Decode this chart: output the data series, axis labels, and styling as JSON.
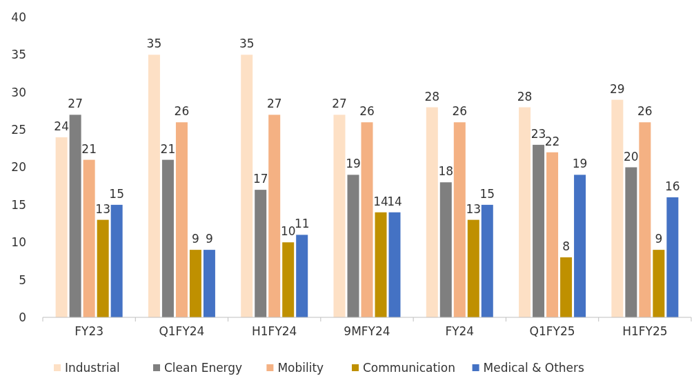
{
  "chart_data": {
    "type": "bar",
    "categories": [
      "FY23",
      "Q1FY24",
      "H1FY24",
      "9MFY24",
      "FY24",
      "Q1FY25",
      "H1FY25"
    ],
    "series": [
      {
        "name": "Industrial",
        "color": "#fde0c5",
        "values": [
          24,
          35,
          35,
          27,
          28,
          28,
          29
        ]
      },
      {
        "name": "Clean Energy",
        "color": "#7f7f7f",
        "values": [
          27,
          21,
          17,
          19,
          18,
          23,
          20
        ]
      },
      {
        "name": "Mobility",
        "color": "#f4b183",
        "values": [
          21,
          26,
          27,
          26,
          26,
          22,
          26
        ]
      },
      {
        "name": "Communication",
        "color": "#bf9000",
        "values": [
          13,
          9,
          10,
          14,
          13,
          8,
          9
        ]
      },
      {
        "name": "Medical & Others",
        "color": "#4472c4",
        "values": [
          15,
          9,
          11,
          14,
          15,
          19,
          16
        ]
      }
    ],
    "ylim": [
      0,
      40
    ],
    "yticks": [
      0,
      5,
      10,
      15,
      20,
      25,
      30,
      35,
      40
    ],
    "data_labels": true,
    "grid": false,
    "legend": "bottom"
  }
}
